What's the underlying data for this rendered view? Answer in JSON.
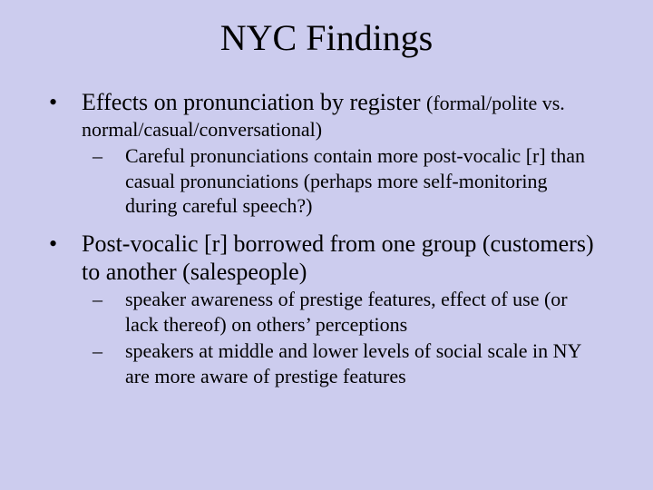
{
  "slide": {
    "background_color": "#ccccee",
    "text_color": "#000000",
    "font_family": "Times New Roman",
    "title": "NYC Findings",
    "title_fontsize": 40,
    "body_fontsize_l1": 26,
    "body_fontsize_l2": 22,
    "bullets": [
      {
        "level": 1,
        "text_main": "Effects on pronunciation by register ",
        "text_paren": "(formal/polite vs.",
        "continuation": "normal/casual/conversational)",
        "sub": [
          "Careful pronunciations contain more post-vocalic [r] than casual pronunciations (perhaps more self-monitoring during careful speech?)"
        ]
      },
      {
        "level": 1,
        "text_main": "Post-vocalic [r] borrowed from one group (customers) to another (salespeople)",
        "sub": [
          "speaker awareness of prestige features, effect of use (or lack thereof) on others’ perceptions",
          "speakers at middle and lower levels of social scale in NY are more aware of prestige features"
        ]
      }
    ]
  }
}
